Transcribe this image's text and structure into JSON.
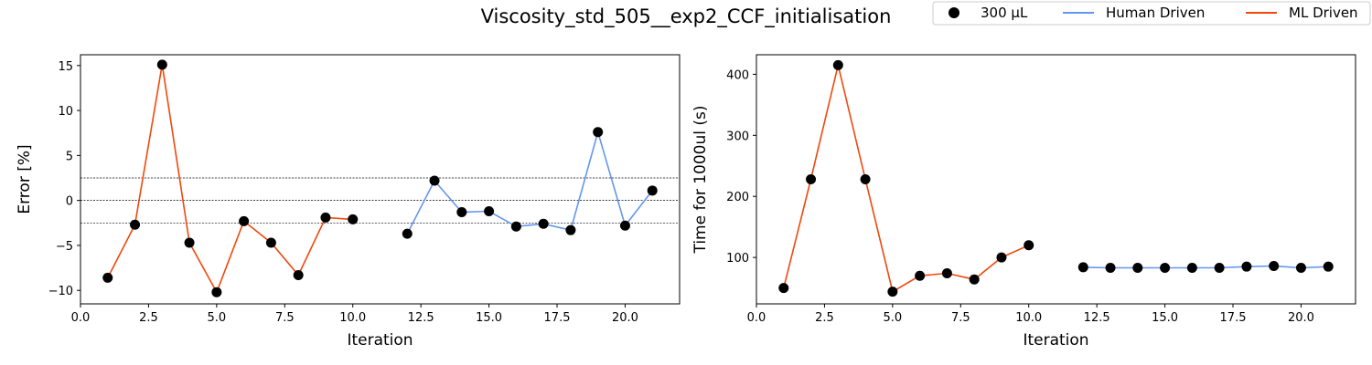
{
  "figure_title": "Viscosity_std_505__exp2_CCF_initialisation",
  "legend": {
    "placement": "top-right",
    "entries": [
      {
        "label": "300 µL",
        "kind": "marker",
        "color": "#000000"
      },
      {
        "label": "Human Driven",
        "kind": "line",
        "color": "#6495ED"
      },
      {
        "label": "ML Driven",
        "kind": "line",
        "color": "#F0480C"
      }
    ]
  },
  "chart_data": [
    {
      "type": "line",
      "xlabel": "Iteration",
      "ylabel": "Error [%]",
      "xlim": [
        0,
        22
      ],
      "ylim": [
        -11.5,
        16.2
      ],
      "xticks": [
        0.0,
        2.5,
        5.0,
        7.5,
        10.0,
        12.5,
        15.0,
        17.5,
        20.0
      ],
      "xtick_labels": [
        "0.0",
        "2.5",
        "5.0",
        "7.5",
        "10.0",
        "12.5",
        "15.0",
        "17.5",
        "20.0"
      ],
      "yticks": [
        -10,
        -5,
        0,
        5,
        10,
        15
      ],
      "ytick_labels": [
        "−10",
        "−5",
        "0",
        "5",
        "10",
        "15"
      ],
      "reference_lines": [
        2.5,
        0,
        -2.5
      ],
      "grid": false,
      "series": [
        {
          "name": "ML Driven",
          "color": "#F0480C",
          "x": [
            1,
            2,
            3,
            4,
            5,
            6,
            7,
            8,
            9,
            10
          ],
          "y": [
            -8.6,
            -2.7,
            15.1,
            -4.7,
            -10.2,
            -2.3,
            -4.7,
            -8.3,
            -1.9,
            -2.1
          ]
        },
        {
          "name": "Human Driven",
          "color": "#6495ED",
          "x": [
            12,
            13,
            14,
            15,
            16,
            17,
            18,
            19,
            20,
            21
          ],
          "y": [
            -3.7,
            2.2,
            -1.3,
            -1.2,
            -2.9,
            -2.6,
            -3.3,
            7.6,
            -2.8,
            1.1
          ]
        }
      ],
      "markers": {
        "name": "300 µL",
        "color": "#000000",
        "x": [
          1,
          2,
          3,
          4,
          5,
          6,
          7,
          8,
          9,
          10,
          12,
          13,
          14,
          15,
          16,
          17,
          18,
          19,
          20,
          21
        ],
        "y": [
          -8.6,
          -2.7,
          15.1,
          -4.7,
          -10.2,
          -2.3,
          -4.7,
          -8.3,
          -1.9,
          -2.1,
          -3.7,
          2.2,
          -1.3,
          -1.2,
          -2.9,
          -2.6,
          -3.3,
          7.6,
          -2.8,
          1.1
        ]
      }
    },
    {
      "type": "line",
      "xlabel": "Iteration",
      "ylabel": "Time for 1000ul (s)",
      "xlim": [
        0,
        22
      ],
      "ylim": [
        24,
        432
      ],
      "xticks": [
        0.0,
        2.5,
        5.0,
        7.5,
        10.0,
        12.5,
        15.0,
        17.5,
        20.0
      ],
      "xtick_labels": [
        "0.0",
        "2.5",
        "5.0",
        "7.5",
        "10.0",
        "12.5",
        "15.0",
        "17.5",
        "20.0"
      ],
      "yticks": [
        100,
        200,
        300,
        400
      ],
      "ytick_labels": [
        "100",
        "200",
        "300",
        "400"
      ],
      "reference_lines": [],
      "grid": false,
      "series": [
        {
          "name": "ML Driven",
          "color": "#F0480C",
          "x": [
            1,
            2,
            3,
            4,
            5,
            6,
            7,
            8,
            9,
            10
          ],
          "y": [
            50,
            228,
            415,
            228,
            44,
            70,
            74,
            64,
            100,
            120
          ]
        },
        {
          "name": "Human Driven",
          "color": "#6495ED",
          "x": [
            12,
            13,
            14,
            15,
            16,
            17,
            18,
            19,
            20,
            21
          ],
          "y": [
            84,
            83,
            83,
            83,
            83,
            83,
            85,
            86,
            83,
            85
          ]
        }
      ],
      "markers": {
        "name": "300 µL",
        "color": "#000000",
        "x": [
          1,
          2,
          3,
          4,
          5,
          6,
          7,
          8,
          9,
          10,
          12,
          13,
          14,
          15,
          16,
          17,
          18,
          19,
          20,
          21
        ],
        "y": [
          50,
          228,
          415,
          228,
          44,
          70,
          74,
          64,
          100,
          120,
          84,
          83,
          83,
          83,
          83,
          83,
          85,
          86,
          83,
          85
        ]
      }
    }
  ]
}
